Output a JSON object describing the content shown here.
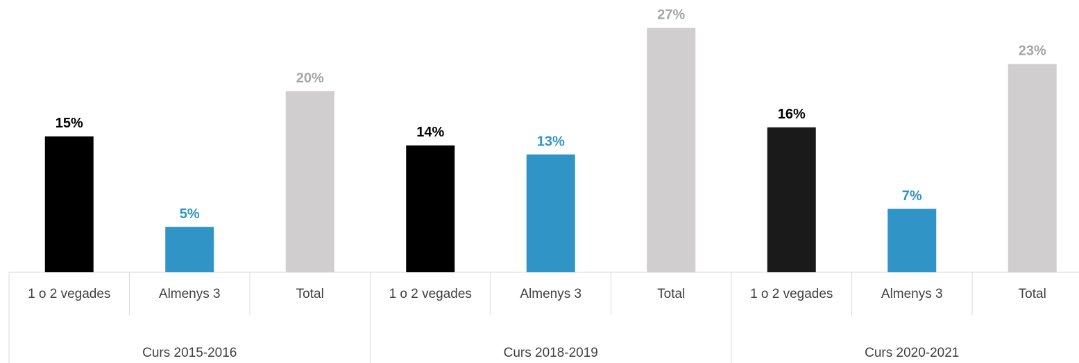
{
  "chart_data": {
    "type": "bar",
    "groups": [
      "Curs 2015-2016",
      "Curs 2018-2019",
      "Curs 2020-2021"
    ],
    "categories": [
      "1 o 2 vegades",
      "Almenys 3",
      "Total",
      "1 o 2 vegades",
      "Almenys 3",
      "Total",
      "1 o 2 vegades",
      "Almenys 3",
      "Total"
    ],
    "values": [
      15,
      5,
      20,
      14,
      13,
      27,
      16,
      7,
      23
    ],
    "value_labels": [
      "15%",
      "5%",
      "20%",
      "14%",
      "13%",
      "27%",
      "16%",
      "7%",
      "23%"
    ],
    "colors": [
      "#000000",
      "#3094c6",
      "#d0cecf",
      "#000000",
      "#3094c6",
      "#d0cecf",
      "#1a1a1a",
      "#3094c6",
      "#d0cecf"
    ],
    "label_colors": [
      "#000000",
      "#3094c6",
      "#a6a6a6",
      "#000000",
      "#3094c6",
      "#a6a6a6",
      "#000000",
      "#3094c6",
      "#a6a6a6"
    ]
  }
}
